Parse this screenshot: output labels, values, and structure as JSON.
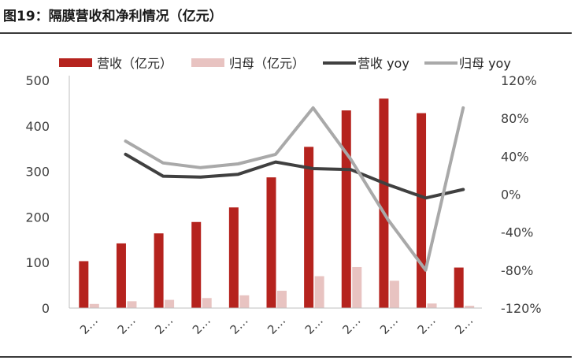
{
  "header": {
    "title": "图19：隔膜营收和净利情况（亿元）"
  },
  "chart_data": {
    "type": "bar",
    "title": "图19：隔膜营收和净利情况（亿元）",
    "categories": [
      "2…",
      "2…",
      "2…",
      "2…",
      "2…",
      "2…",
      "2…",
      "2…",
      "2…",
      "2…",
      "2…"
    ],
    "series": [
      {
        "name": "营收（亿元）",
        "type": "bar",
        "axis": "left",
        "color": "#b5231e",
        "values": [
          103,
          142,
          164,
          189,
          221,
          287,
          354,
          434,
          460,
          428,
          89
        ]
      },
      {
        "name": "归母（亿元）",
        "type": "bar",
        "axis": "left",
        "color": "#e8c3c1",
        "values": [
          9,
          15,
          18,
          22,
          28,
          38,
          70,
          90,
          60,
          10,
          5
        ]
      },
      {
        "name": "营收 yoy",
        "type": "line",
        "axis": "right",
        "color": "#404040",
        "values": [
          null,
          42,
          19,
          18,
          21,
          34,
          27,
          26,
          10,
          -4,
          5
        ]
      },
      {
        "name": "归母 yoy",
        "type": "line",
        "axis": "right",
        "color": "#a9a9a9",
        "values": [
          null,
          56,
          33,
          28,
          32,
          42,
          91,
          37,
          -27,
          -80,
          91
        ]
      }
    ],
    "y_left": {
      "range": [
        0,
        500
      ],
      "ticks": [
        "0",
        "100",
        "200",
        "300",
        "400",
        "500"
      ]
    },
    "y_right": {
      "range": [
        -120,
        120
      ],
      "ticks": [
        "-120%",
        "-80%",
        "-40%",
        "0%",
        "40%",
        "80%",
        "120%"
      ]
    },
    "legend_position": "top",
    "grid": false
  }
}
